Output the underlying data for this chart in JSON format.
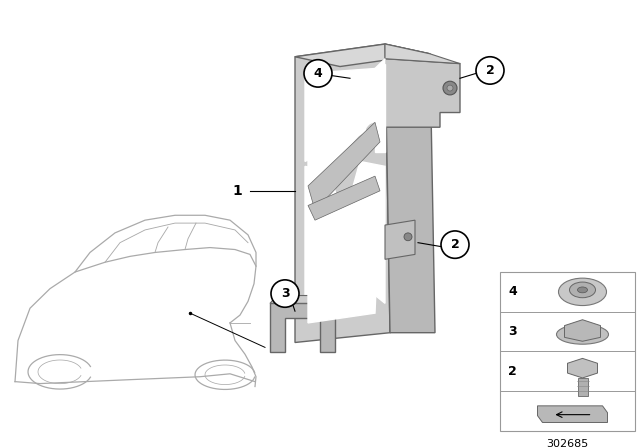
{
  "bg_color": "#ffffff",
  "part_number": "302685",
  "bracket_fill": "#c8c8c8",
  "bracket_edge": "#666666",
  "bracket_dark": "#aaaaaa",
  "car_edge": "#aaaaaa",
  "car_fill": "#ffffff",
  "callout_fill": "#ffffff",
  "callout_edge": "#000000",
  "parts_box_edge": "#999999",
  "parts_box_fill": "#ffffff",
  "hardware_fill": "#c0c0c0",
  "hardware_edge": "#666666"
}
